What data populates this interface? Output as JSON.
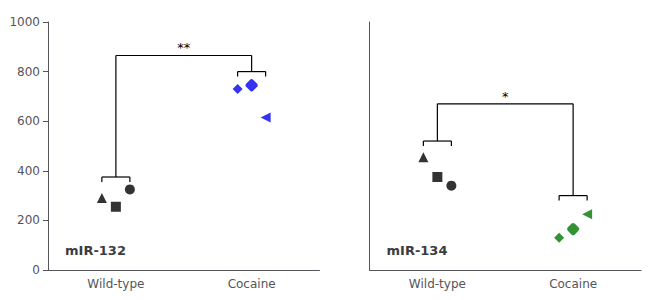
{
  "chart_data": [
    {
      "type": "scatter",
      "title": "mIR-132",
      "categories": [
        "Wild-type",
        "Cocaine"
      ],
      "values": [
        [
          290,
          255,
          325
        ],
        [
          730,
          745,
          615
        ]
      ],
      "colors": [
        "#000000",
        "#0000ee"
      ],
      "annotation": {
        "text": "**",
        "y": 865,
        "text_y": 870,
        "bracket_tops": [
          375,
          800
        ]
      },
      "ylim": [
        0,
        1000
      ],
      "yticks": [
        0,
        200,
        400,
        600,
        800,
        1000
      ],
      "grid": false
    },
    {
      "type": "scatter",
      "title": "mIR-134",
      "categories": [
        "Wild-type",
        "Cocaine"
      ],
      "values": [
        [
          455,
          375,
          340
        ],
        [
          130,
          165,
          225
        ]
      ],
      "colors": [
        "#000000",
        "#007700"
      ],
      "annotation": {
        "text": "*",
        "y": 670,
        "text_y": 675,
        "bracket_tops": [
          520,
          300
        ]
      },
      "ylim": [
        0,
        1000
      ],
      "yticks": [
        0,
        200,
        400,
        600,
        800,
        1000
      ],
      "grid": false,
      "tick_labels": "x"
    }
  ]
}
